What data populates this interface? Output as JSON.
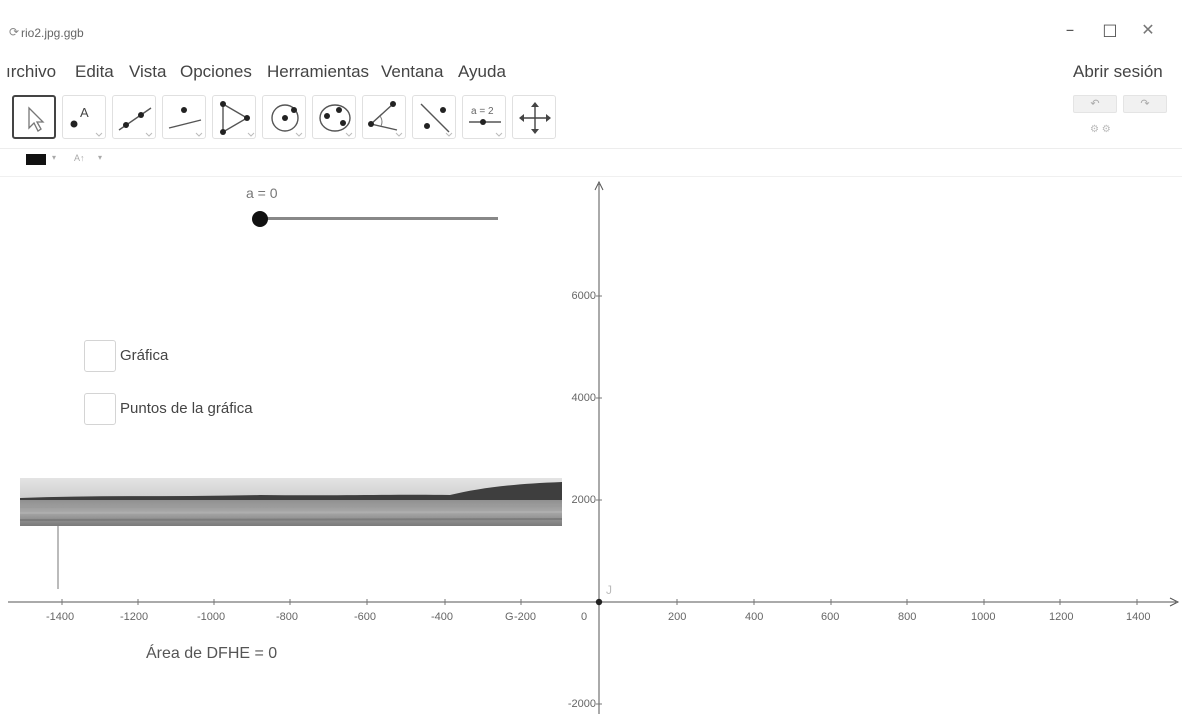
{
  "window": {
    "icon": "spinner-icon",
    "title": "rio2.jpg.ggb",
    "minimize": "–",
    "maximize": "☐",
    "close": "✕"
  },
  "menu": {
    "items": [
      "ırchivo",
      "Edita",
      "Vista",
      "Opciones",
      "Herramientas",
      "Ventana",
      "Ayuda"
    ],
    "login": "Abrir sesión"
  },
  "toolbar": {
    "tools": [
      {
        "name": "move-tool",
        "icon": "pointer-icon",
        "selected": true
      },
      {
        "name": "point-tool",
        "icon": "point-icon",
        "label": "A"
      },
      {
        "name": "line-tool",
        "icon": "line-icon"
      },
      {
        "name": "perpendicular-tool",
        "icon": "perpendicular-icon"
      },
      {
        "name": "polygon-tool",
        "icon": "polygon-icon"
      },
      {
        "name": "circle-tool",
        "icon": "circle-icon"
      },
      {
        "name": "conic-tool",
        "icon": "conic-icon"
      },
      {
        "name": "angle-tool",
        "icon": "angle-icon"
      },
      {
        "name": "reflect-tool",
        "icon": "reflect-icon"
      },
      {
        "name": "slider-tool",
        "icon": "slider-icon",
        "label": "a = 2"
      },
      {
        "name": "move-view-tool",
        "icon": "move-view-icon"
      }
    ],
    "undo": "↶",
    "redo": "↷",
    "undo_redo_icons": "⚙     ⚙"
  },
  "stylebar": {
    "color": "#111111",
    "arrow": "▾",
    "text_style": "A↑"
  },
  "graphics": {
    "slider": {
      "label": "a = 0",
      "value": 0
    },
    "checkboxes": [
      {
        "label": "Gráfica",
        "checked": false
      },
      {
        "label": "Puntos de la gráfica",
        "checked": false
      }
    ],
    "area_text": "Área de  DFHE = 0",
    "origin_label": "J",
    "x_ticks": [
      "-1400",
      "-1200",
      "-1000",
      "-800",
      "-600",
      "-400",
      "-200",
      "0",
      "200",
      "400",
      "600",
      "800",
      "1000",
      "1200",
      "1400"
    ],
    "y_ticks": [
      "6000",
      "4000",
      "2000",
      "-2000"
    ],
    "axis_color": "#444444",
    "minus200_prefix": "G"
  }
}
